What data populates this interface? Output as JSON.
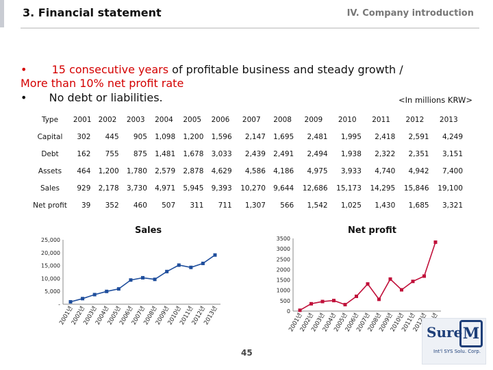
{
  "header": {
    "title": "3. Financial statement",
    "section": "IV. Company introduction"
  },
  "headline": {
    "bullet1": "•",
    "line1_red": "15 consecutive years",
    "line1_rest": " of profitable business and steady growth /",
    "line2": "More than 10% net profit rate",
    "bullet2": "•",
    "line3": "No debt or liabilities."
  },
  "unit_note": "<In millions KRW>",
  "table": {
    "corner": "Type",
    "years": [
      "2001",
      "2002",
      "2003",
      "2004",
      "2005",
      "2006",
      "2007",
      "2008",
      "2009",
      "2010",
      "2011",
      "2012",
      "2013"
    ],
    "rows": [
      {
        "label": "Capital",
        "values": [
          "302",
          "445",
          "905",
          "1,098",
          "1,200",
          "1,596",
          "2,147",
          "1,695",
          "2,481",
          "1,995",
          "2,418",
          "2,591",
          "4,249"
        ]
      },
      {
        "label": "Debt",
        "values": [
          "162",
          "755",
          "875",
          "1,481",
          "1,678",
          "3,033",
          "2,439",
          "2,491",
          "2,494",
          "1,938",
          "2,322",
          "2,351",
          "3,151"
        ]
      },
      {
        "label": "Assets",
        "values": [
          "464",
          "1,200",
          "1,780",
          "2,579",
          "2,878",
          "4,629",
          "4,586",
          "4,186",
          "4,975",
          "3,933",
          "4,740",
          "4,942",
          "7,400"
        ]
      },
      {
        "label": "Sales",
        "values": [
          "929",
          "2,178",
          "3,730",
          "4,971",
          "5,945",
          "9,393",
          "10,270",
          "9,644",
          "12,686",
          "15,173",
          "14,295",
          "15,846",
          "19,100"
        ]
      },
      {
        "label": "Net profit",
        "values": [
          "39",
          "352",
          "460",
          "507",
          "311",
          "711",
          "1,307",
          "566",
          "1,542",
          "1,025",
          "1,430",
          "1,685",
          "3,321"
        ]
      }
    ]
  },
  "chart_data": [
    {
      "type": "line",
      "title": "Sales",
      "categories": [
        "2001년",
        "2002년",
        "2003년",
        "2004년",
        "2005년",
        "2006년",
        "2007년",
        "2008년",
        "2009년",
        "2010년",
        "2011년",
        "2012년",
        "2013년"
      ],
      "values": [
        929,
        2178,
        3730,
        4971,
        5945,
        9393,
        10270,
        9644,
        12686,
        15173,
        14295,
        15846,
        19100
      ],
      "ylim": [
        0,
        25000
      ],
      "yticks": [
        "-",
        "5,000",
        "10,000",
        "15,000",
        "20,000",
        "25,000"
      ],
      "ytick_values": [
        0,
        5000,
        10000,
        15000,
        20000,
        25000
      ],
      "color": "#1f4e9c",
      "grid": false
    },
    {
      "type": "line",
      "title": "Net profit",
      "categories": [
        "2001년",
        "2002년",
        "2003년",
        "2004년",
        "2005년",
        "2006년",
        "2007년",
        "2008년",
        "2009년",
        "2010년",
        "2011년",
        "2012년",
        "2013년"
      ],
      "values": [
        39,
        352,
        460,
        507,
        311,
        711,
        1307,
        566,
        1542,
        1025,
        1430,
        1685,
        3321
      ],
      "ylim": [
        0,
        3500
      ],
      "yticks": [
        "0",
        "500",
        "1000",
        "1500",
        "2000",
        "2500",
        "3000",
        "3500"
      ],
      "ytick_values": [
        0,
        500,
        1000,
        1500,
        2000,
        2500,
        3000,
        3500
      ],
      "color": "#c0103a",
      "grid": false
    }
  ],
  "page_number": "45",
  "logo": {
    "word": "Sure",
    "mark": "M",
    "tagline": "Int'l SYS Solu. Corp."
  },
  "colors": {
    "headline_red": "#d40000",
    "sales_line": "#1f4e9c",
    "profit_line": "#c0103a"
  }
}
